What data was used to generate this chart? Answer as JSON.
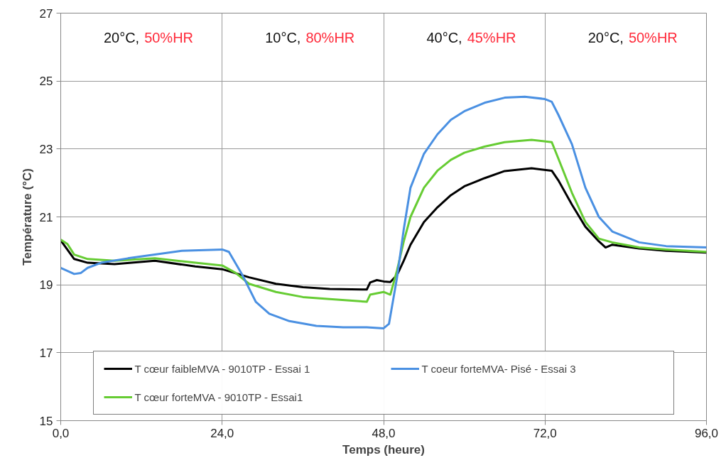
{
  "chart_data": {
    "type": "line",
    "xlabel": "Temps (heure)",
    "ylabel": "Température (°C)",
    "xlim": [
      0,
      96
    ],
    "ylim": [
      15,
      27
    ],
    "xticks": [
      {
        "value": 0,
        "label": "0,0"
      },
      {
        "value": 24,
        "label": "24,0"
      },
      {
        "value": 48,
        "label": "48,0"
      },
      {
        "value": 72,
        "label": "72,0"
      },
      {
        "value": 96,
        "label": "96,0"
      }
    ],
    "yticks": [
      15,
      17,
      19,
      21,
      23,
      25,
      27
    ],
    "grid": true,
    "legend": "bottom",
    "line_style": "solid",
    "marker": "none",
    "annotations": [
      "20°C, 50%HR",
      "10°C, 80%HR",
      "40°C, 45%HR",
      "20°C, 50%HR"
    ],
    "x": [
      0,
      2,
      4,
      8,
      14,
      20,
      24,
      28,
      32,
      36,
      40,
      45.5,
      46,
      47,
      48,
      49,
      50,
      51,
      52,
      54,
      56,
      58,
      60,
      63,
      66,
      70,
      73,
      74,
      76,
      78,
      80,
      81,
      82,
      86,
      90,
      96
    ],
    "series": [
      {
        "name": "T cœur faibleMVA - 9010TP - Essai 1",
        "color": "#000000",
        "values": [
          20.31,
          19.76,
          19.65,
          19.61,
          19.71,
          19.54,
          19.46,
          19.22,
          19.03,
          18.93,
          18.88,
          18.86,
          19.07,
          19.14,
          19.1,
          19.08,
          19.29,
          19.71,
          20.18,
          20.85,
          21.28,
          21.64,
          21.9,
          22.14,
          22.35,
          22.43,
          22.36,
          22.07,
          21.36,
          20.71,
          20.28,
          20.1,
          20.18,
          20.07,
          20.0,
          19.95
        ]
      },
      {
        "name": "T cœur forteMVA - 9010TP - Essai1",
        "color": "#66cc33",
        "x": [
          0,
          1,
          2,
          4,
          8,
          14,
          20,
          24,
          26,
          28,
          32,
          36,
          40,
          45.5,
          46,
          48,
          49,
          50,
          51,
          52,
          54,
          56,
          58,
          60,
          63,
          66,
          70,
          73,
          74,
          76,
          78,
          80,
          82,
          86,
          90,
          96
        ],
        "values": [
          20.33,
          20.2,
          19.89,
          19.76,
          19.71,
          19.78,
          19.65,
          19.57,
          19.35,
          19.03,
          18.79,
          18.64,
          18.58,
          18.5,
          18.71,
          18.79,
          18.71,
          19.43,
          20.28,
          21.0,
          21.86,
          22.36,
          22.68,
          22.89,
          23.07,
          23.2,
          23.27,
          23.2,
          22.71,
          21.71,
          20.85,
          20.36,
          20.25,
          20.1,
          20.04,
          19.97
        ]
      },
      {
        "name": "T coeur forteMVA- Pisé - Essai 3",
        "color": "#4a90e2",
        "x": [
          0,
          2,
          3,
          4,
          6,
          10,
          14,
          18,
          24,
          25,
          27,
          29,
          31,
          34,
          38,
          42,
          45.5,
          48,
          48.8,
          50,
          51,
          52,
          54,
          56,
          58,
          60,
          63,
          66,
          69,
          72,
          73,
          74,
          76,
          78,
          80,
          82,
          86,
          90,
          96
        ],
        "values": [
          19.5,
          19.32,
          19.35,
          19.5,
          19.65,
          19.78,
          19.89,
          20.0,
          20.04,
          19.97,
          19.29,
          18.5,
          18.15,
          17.93,
          17.79,
          17.75,
          17.75,
          17.72,
          17.85,
          19.22,
          20.64,
          21.86,
          22.86,
          23.43,
          23.86,
          24.11,
          24.36,
          24.51,
          24.54,
          24.47,
          24.39,
          24.0,
          23.14,
          21.86,
          21.0,
          20.57,
          20.25,
          20.14,
          20.1
        ]
      }
    ]
  }
}
